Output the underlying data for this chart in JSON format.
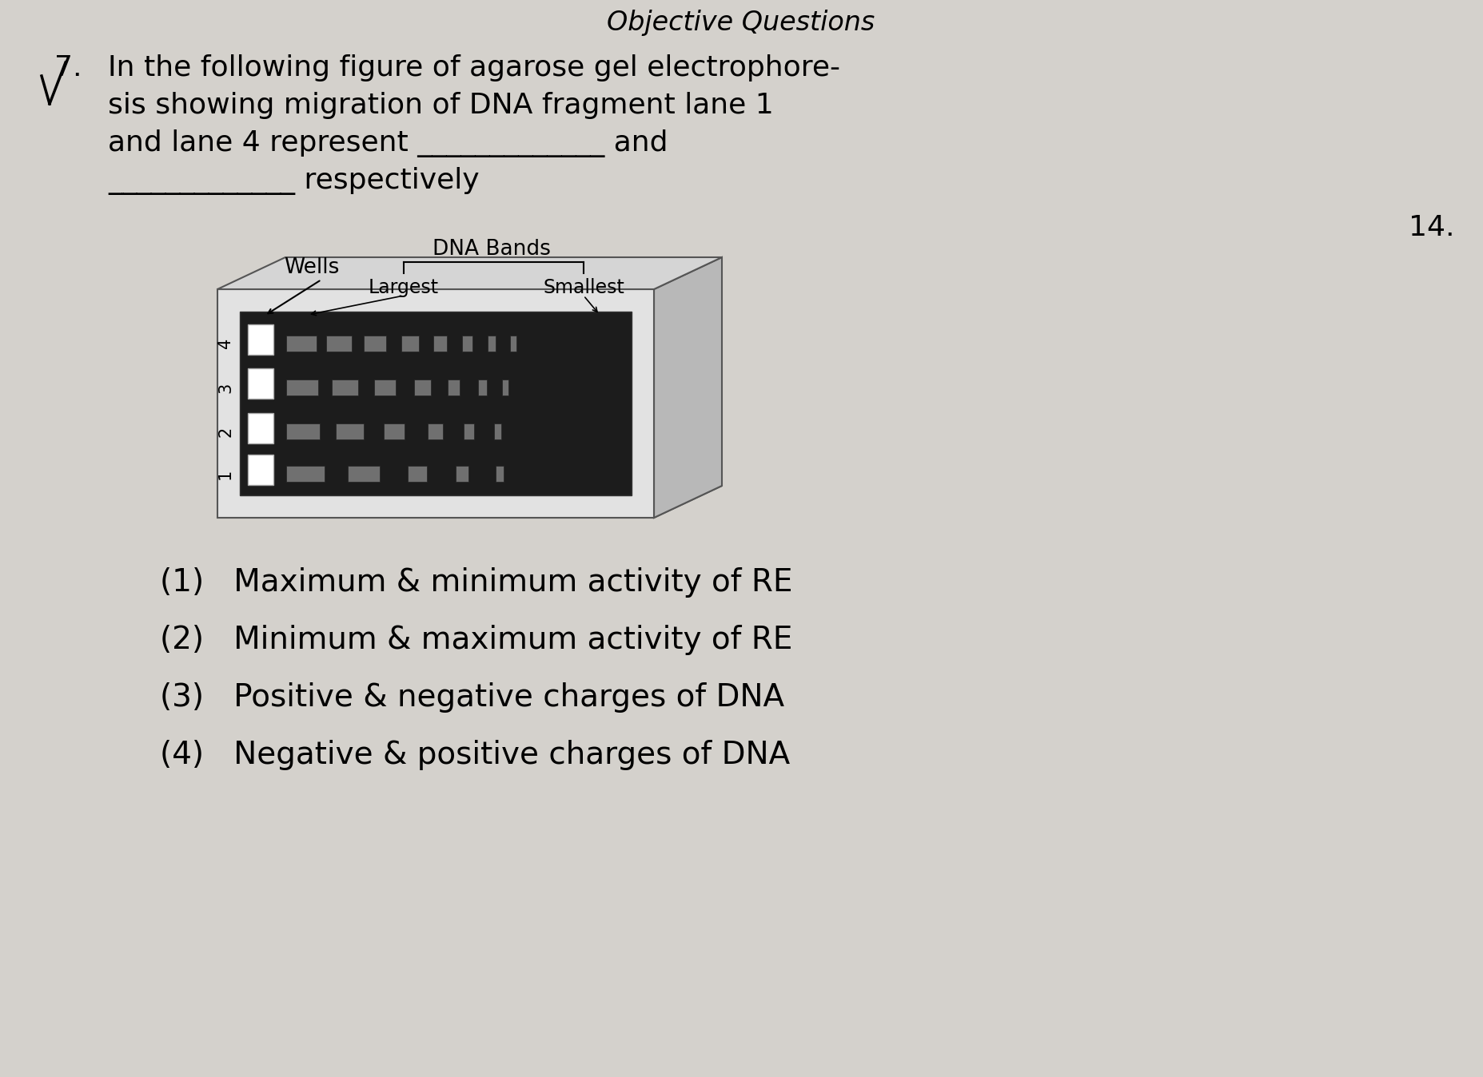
{
  "bg_color": "#d4d1cc",
  "title_header": "Objective Questions",
  "question_number": "7.",
  "question_text_line1": "In the following figure of agarose gel electrophore-",
  "question_text_line2": "sis showing migration of DNA fragment lane 1",
  "question_text_line3": "and lane 4 represent _____________ and",
  "question_text_line4": "_____________ respectively",
  "number_14": "14.",
  "label_wells": "Wells",
  "label_dna_bands": "DNA Bands",
  "label_largest": "Largest",
  "label_smallest": "Smallest",
  "lane_labels": [
    "4",
    "3",
    "2",
    "1"
  ],
  "options": [
    "(1)   Maximum & minimum activity of RE",
    "(2)   Minimum & maximum activity of RE",
    "(3)   Positive & negative charges of DNA",
    "(4)   Negative & positive charges of DNA"
  ]
}
